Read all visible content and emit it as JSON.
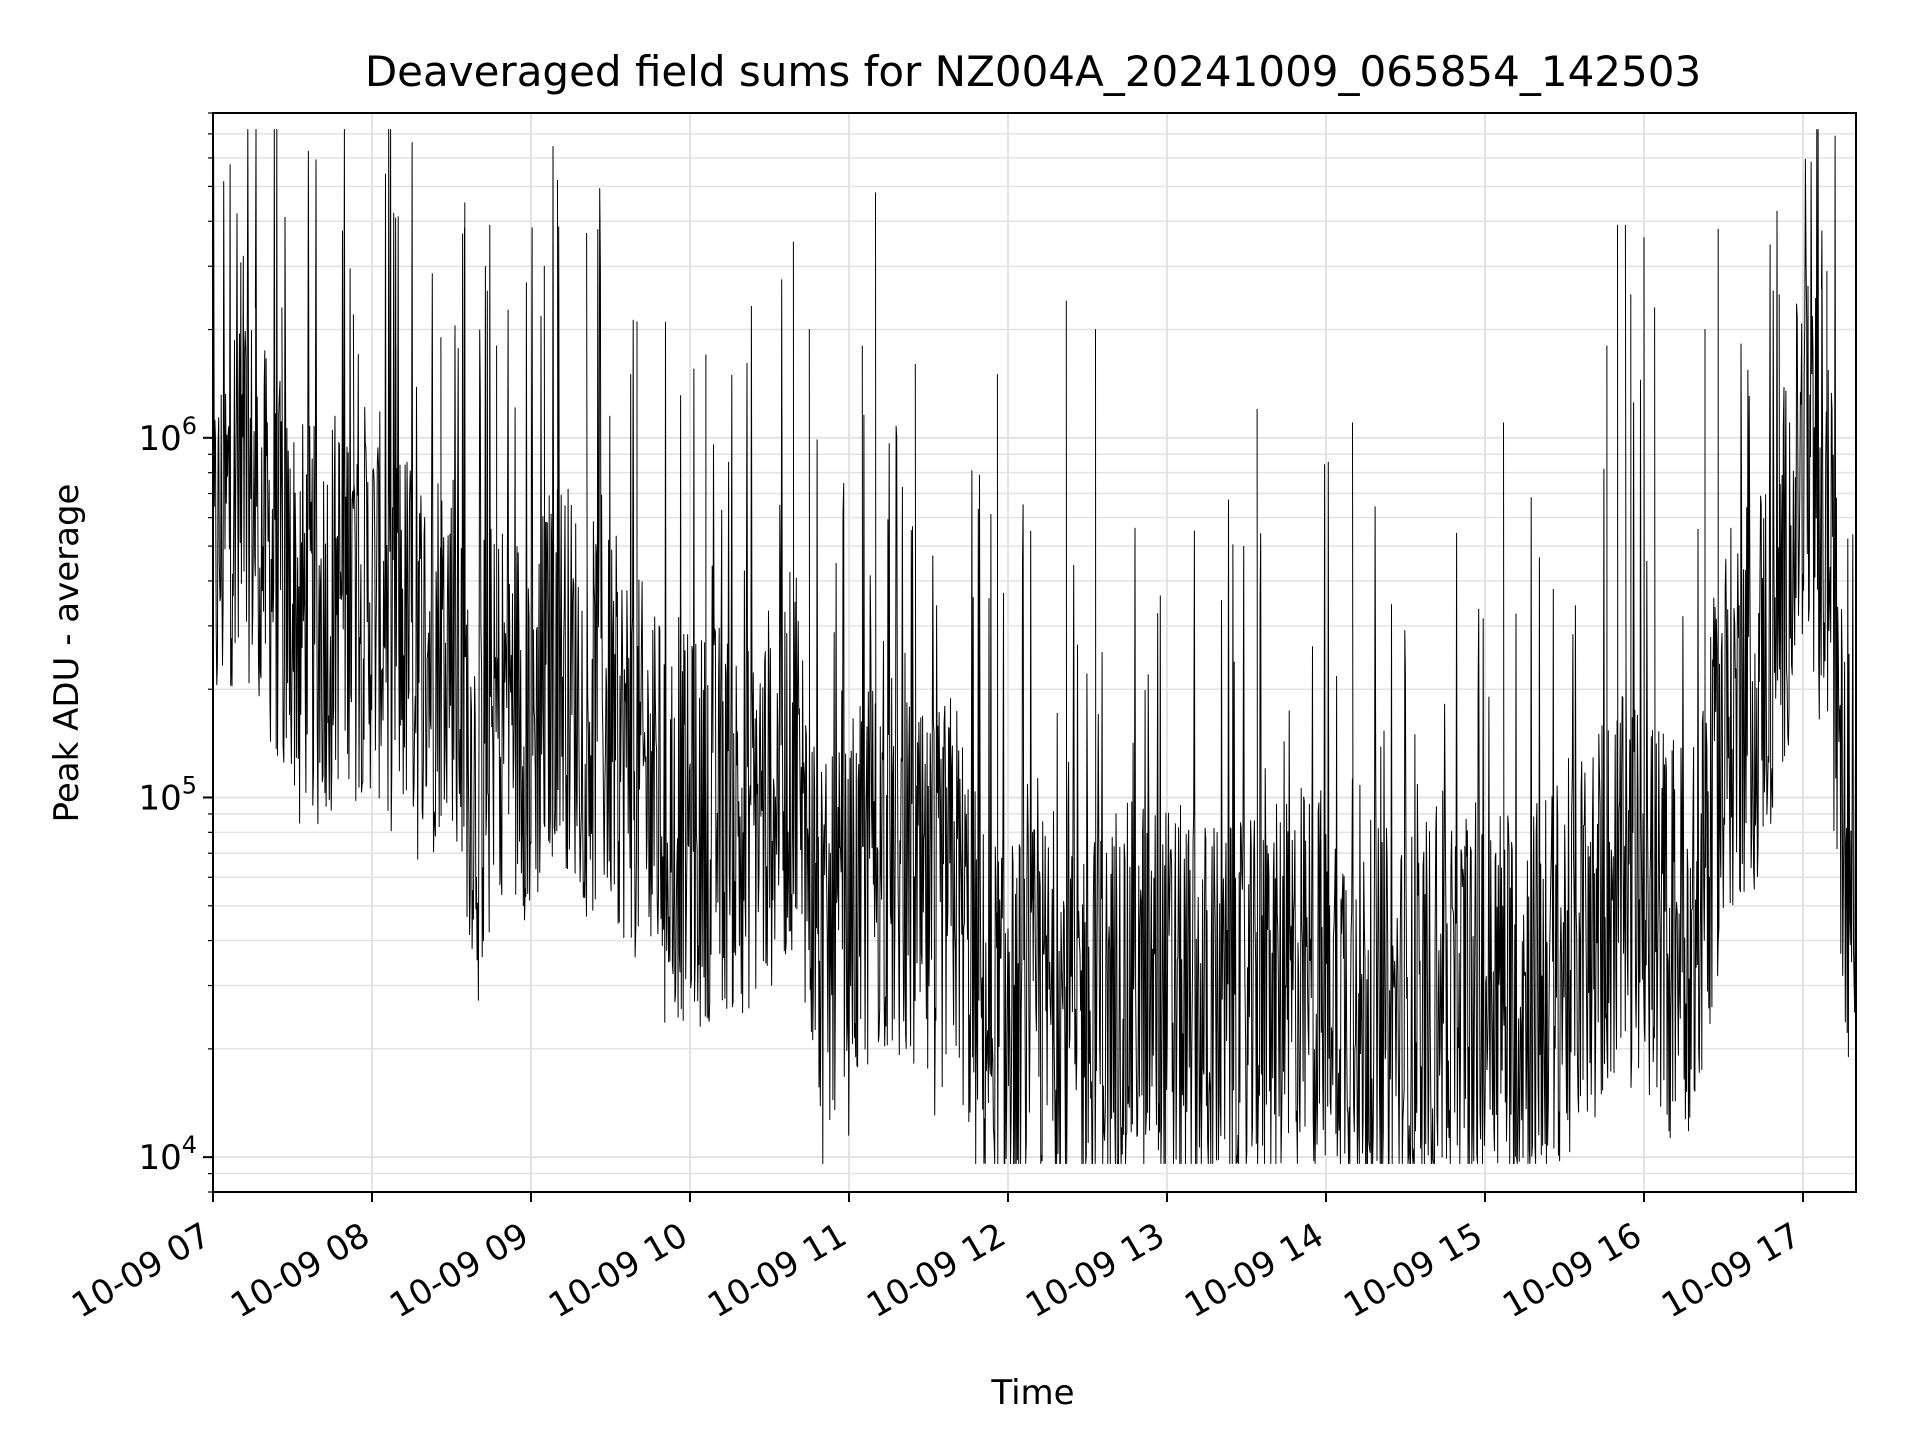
{
  "chart_data": {
    "type": "line",
    "title": "Deaveraged field sums for NZ004A_20241009_065854_142503",
    "xlabel": "Time",
    "ylabel": "Peak ADU - average",
    "yscale": "log",
    "ylim": [
      8000,
      8000000
    ],
    "xlim": [
      "2024-10-09 07:00",
      "2024-10-09 17:20"
    ],
    "grid": true,
    "x_ticks": [
      "10-09 07",
      "10-09 08",
      "10-09 09",
      "10-09 10",
      "10-09 11",
      "10-09 12",
      "10-09 13",
      "10-09 14",
      "10-09 15",
      "10-09 16",
      "10-09 17"
    ],
    "y_ticks": [
      {
        "base": "10",
        "exp": "4",
        "value": 10000
      },
      {
        "base": "10",
        "exp": "5",
        "value": 100000
      },
      {
        "base": "10",
        "exp": "6",
        "value": 1000000
      }
    ],
    "line_color": "#000000",
    "series": [
      {
        "x": [
          "2024-10-09 07:00",
          "2024-10-09 07:10",
          "2024-10-09 07:20",
          "2024-10-09 07:30",
          "2024-10-09 07:40",
          "2024-10-09 07:50",
          "2024-10-09 08:00",
          "2024-10-09 08:10",
          "2024-10-09 08:20",
          "2024-10-09 08:30",
          "2024-10-09 08:40",
          "2024-10-09 08:50",
          "2024-10-09 09:00",
          "2024-10-09 09:10",
          "2024-10-09 09:20",
          "2024-10-09 09:30",
          "2024-10-09 09:40",
          "2024-10-09 09:50",
          "2024-10-09 10:00",
          "2024-10-09 10:10",
          "2024-10-09 10:20",
          "2024-10-09 10:30",
          "2024-10-09 10:40",
          "2024-10-09 10:50",
          "2024-10-09 11:00",
          "2024-10-09 11:10",
          "2024-10-09 11:20",
          "2024-10-09 11:30",
          "2024-10-09 11:40",
          "2024-10-09 11:50",
          "2024-10-09 12:00",
          "2024-10-09 12:10",
          "2024-10-09 12:20",
          "2024-10-09 12:30",
          "2024-10-09 12:40",
          "2024-10-09 12:50",
          "2024-10-09 13:00",
          "2024-10-09 13:10",
          "2024-10-09 13:20",
          "2024-10-09 13:30",
          "2024-10-09 13:40",
          "2024-10-09 13:50",
          "2024-10-09 14:00",
          "2024-10-09 14:10",
          "2024-10-09 14:20",
          "2024-10-09 14:30",
          "2024-10-09 14:40",
          "2024-10-09 14:50",
          "2024-10-09 15:00",
          "2024-10-09 15:10",
          "2024-10-09 15:20",
          "2024-10-09 15:30",
          "2024-10-09 15:40",
          "2024-10-09 15:50",
          "2024-10-09 16:00",
          "2024-10-09 16:10",
          "2024-10-09 16:20",
          "2024-10-09 16:30",
          "2024-10-09 16:40",
          "2024-10-09 16:50",
          "2024-10-09 17:00",
          "2024-10-09 17:10",
          "2024-10-09 17:15",
          "2024-10-09 17:20"
        ],
        "y": [
          400000,
          900000,
          500000,
          350000,
          300000,
          400000,
          350000,
          300000,
          250000,
          300000,
          100000,
          200000,
          150000,
          250000,
          180000,
          160000,
          120000,
          90000,
          80000,
          90000,
          85000,
          100000,
          130000,
          35000,
          40000,
          70000,
          60000,
          45000,
          60000,
          25000,
          22000,
          25000,
          28000,
          24000,
          25000,
          30000,
          28000,
          26000,
          25000,
          24000,
          27000,
          30000,
          32000,
          26000,
          24000,
          23000,
          25000,
          27000,
          30000,
          28000,
          29000,
          35000,
          45000,
          55000,
          50000,
          45000,
          40000,
          150000,
          200000,
          300000,
          900000,
          500000,
          90000,
          60000
        ],
        "spikes": [
          {
            "x": "2024-10-09 07:16",
            "y": 2300000
          },
          {
            "x": "2024-10-09 07:26",
            "y": 2300000
          },
          {
            "x": "2024-10-09 07:53",
            "y": 2200000
          },
          {
            "x": "2024-10-09 08:09",
            "y": 1800000
          },
          {
            "x": "2024-10-09 08:26",
            "y": 1900000
          },
          {
            "x": "2024-10-09 08:35",
            "y": 4500000
          },
          {
            "x": "2024-10-09 08:35",
            "y": 2500000
          },
          {
            "x": "2024-10-09 08:47",
            "y": 1800000
          },
          {
            "x": "2024-10-09 09:05",
            "y": 3000000
          },
          {
            "x": "2024-10-09 09:10",
            "y": 5200000
          },
          {
            "x": "2024-10-09 09:21",
            "y": 3700000
          },
          {
            "x": "2024-10-09 09:40",
            "y": 2100000
          },
          {
            "x": "2024-10-09 10:06",
            "y": 1700000
          },
          {
            "x": "2024-10-09 10:39",
            "y": 3500000
          },
          {
            "x": "2024-10-09 10:45",
            "y": 2000000
          },
          {
            "x": "2024-10-09 11:05",
            "y": 1800000
          },
          {
            "x": "2024-10-09 11:10",
            "y": 4800000
          },
          {
            "x": "2024-10-09 11:25",
            "y": 1600000
          },
          {
            "x": "2024-10-09 11:56",
            "y": 1500000
          },
          {
            "x": "2024-10-09 12:22",
            "y": 2400000
          },
          {
            "x": "2024-10-09 12:33",
            "y": 2000000
          },
          {
            "x": "2024-10-09 13:34",
            "y": 1200000
          },
          {
            "x": "2024-10-09 14:10",
            "y": 1100000
          },
          {
            "x": "2024-10-09 15:07",
            "y": 1100000
          },
          {
            "x": "2024-10-09 15:46",
            "y": 1800000
          },
          {
            "x": "2024-10-09 15:50",
            "y": 3900000
          },
          {
            "x": "2024-10-09 15:53",
            "y": 3900000
          },
          {
            "x": "2024-10-09 15:55",
            "y": 2500000
          },
          {
            "x": "2024-10-09 16:00",
            "y": 3600000
          },
          {
            "x": "2024-10-09 16:04",
            "y": 2300000
          },
          {
            "x": "2024-10-09 16:23",
            "y": 2000000
          },
          {
            "x": "2024-10-09 16:28",
            "y": 3800000
          },
          {
            "x": "2024-10-09 16:51",
            "y": 2500000
          },
          {
            "x": "2024-10-09 17:07",
            "y": 2600000
          },
          {
            "x": "2024-10-09 17:09",
            "y": 2900000
          }
        ]
      }
    ]
  }
}
